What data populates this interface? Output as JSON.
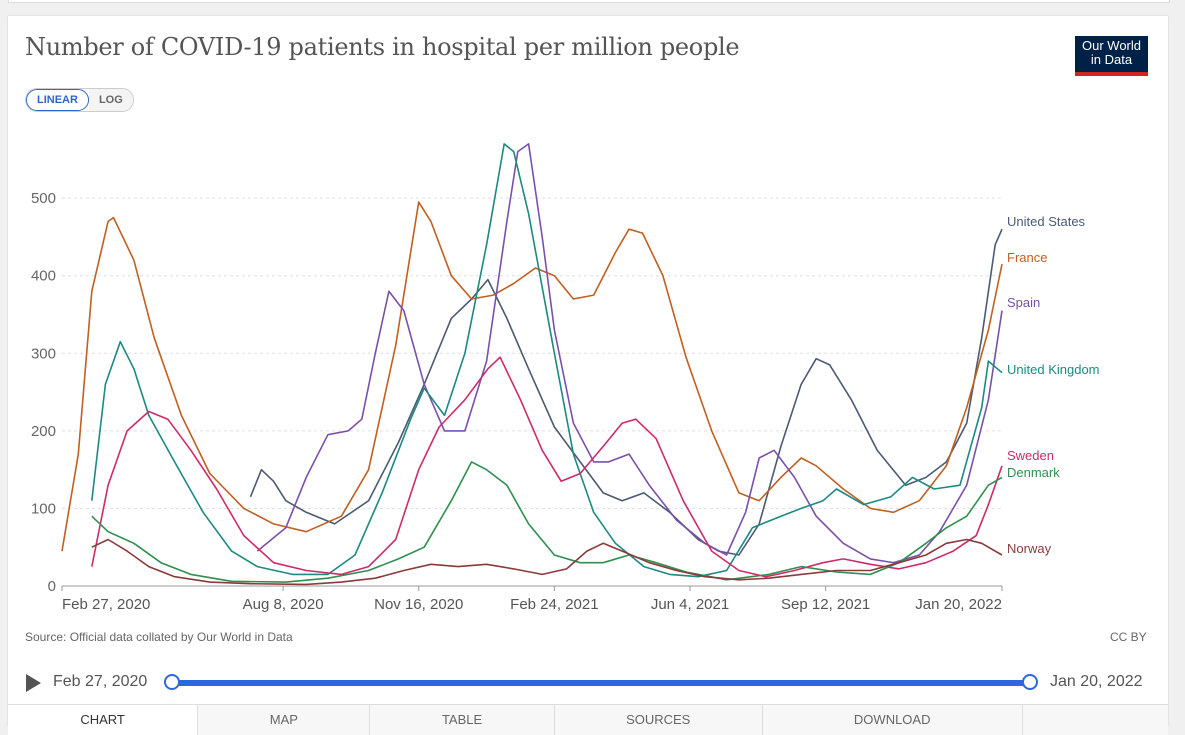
{
  "chart_data": {
    "type": "line",
    "title": "Number of COVID-19 patients in hospital per million people",
    "ylim": [
      0,
      575
    ],
    "yticks": [
      0,
      100,
      200,
      300,
      400,
      500
    ],
    "x_range": [
      "Feb 27, 2020",
      "Jan 20, 2022"
    ],
    "xticks": [
      "Feb 27, 2020",
      "Aug 8, 2020",
      "Nov 16, 2020",
      "Feb 24, 2021",
      "Jun 4, 2021",
      "Sep 12, 2021",
      "Jan 20, 2022"
    ],
    "grid": "horizontal dashed",
    "legend": "inline-right",
    "series": [
      {
        "name": "United States",
        "color": "#4c5a73",
        "points": [
          [
            "2020-07-15",
            115
          ],
          [
            "2020-07-23",
            150
          ],
          [
            "2020-08-01",
            135
          ],
          [
            "2020-08-10",
            110
          ],
          [
            "2020-08-25",
            95
          ],
          [
            "2020-09-15",
            80
          ],
          [
            "2020-10-10",
            110
          ],
          [
            "2020-11-01",
            185
          ],
          [
            "2020-11-20",
            260
          ],
          [
            "2020-12-10",
            345
          ],
          [
            "2020-12-25",
            370
          ],
          [
            "2021-01-06",
            395
          ],
          [
            "2021-01-20",
            345
          ],
          [
            "2021-02-05",
            280
          ],
          [
            "2021-02-24",
            205
          ],
          [
            "2021-03-15",
            160
          ],
          [
            "2021-04-01",
            120
          ],
          [
            "2021-04-15",
            110
          ],
          [
            "2021-05-01",
            120
          ],
          [
            "2021-05-20",
            95
          ],
          [
            "2021-06-10",
            60
          ],
          [
            "2021-06-25",
            45
          ],
          [
            "2021-07-10",
            40
          ],
          [
            "2021-07-25",
            80
          ],
          [
            "2021-08-10",
            180
          ],
          [
            "2021-08-25",
            260
          ],
          [
            "2021-09-05",
            293
          ],
          [
            "2021-09-15",
            285
          ],
          [
            "2021-10-01",
            240
          ],
          [
            "2021-10-20",
            175
          ],
          [
            "2021-11-10",
            130
          ],
          [
            "2021-11-25",
            140
          ],
          [
            "2021-12-10",
            160
          ],
          [
            "2021-12-25",
            210
          ],
          [
            "2022-01-05",
            320
          ],
          [
            "2022-01-15",
            440
          ],
          [
            "2022-01-20",
            460
          ]
        ]
      },
      {
        "name": "France",
        "color": "#c15f20",
        "points": [
          [
            "2020-02-27",
            45
          ],
          [
            "2020-03-10",
            170
          ],
          [
            "2020-03-20",
            380
          ],
          [
            "2020-04-01",
            470
          ],
          [
            "2020-04-05",
            475
          ],
          [
            "2020-04-20",
            420
          ],
          [
            "2020-05-05",
            320
          ],
          [
            "2020-05-25",
            220
          ],
          [
            "2020-06-15",
            145
          ],
          [
            "2020-07-10",
            100
          ],
          [
            "2020-08-01",
            80
          ],
          [
            "2020-08-25",
            70
          ],
          [
            "2020-09-20",
            90
          ],
          [
            "2020-10-10",
            150
          ],
          [
            "2020-10-30",
            310
          ],
          [
            "2020-11-16",
            495
          ],
          [
            "2020-11-25",
            470
          ],
          [
            "2020-12-10",
            400
          ],
          [
            "2020-12-25",
            370
          ],
          [
            "2021-01-10",
            375
          ],
          [
            "2021-01-25",
            390
          ],
          [
            "2021-02-10",
            410
          ],
          [
            "2021-02-24",
            400
          ],
          [
            "2021-03-10",
            370
          ],
          [
            "2021-03-25",
            375
          ],
          [
            "2021-04-10",
            430
          ],
          [
            "2021-04-20",
            460
          ],
          [
            "2021-04-30",
            455
          ],
          [
            "2021-05-15",
            400
          ],
          [
            "2021-06-01",
            295
          ],
          [
            "2021-06-20",
            200
          ],
          [
            "2021-07-10",
            120
          ],
          [
            "2021-07-25",
            110
          ],
          [
            "2021-08-10",
            140
          ],
          [
            "2021-08-25",
            165
          ],
          [
            "2021-09-05",
            155
          ],
          [
            "2021-09-25",
            125
          ],
          [
            "2021-10-15",
            100
          ],
          [
            "2021-11-01",
            95
          ],
          [
            "2021-11-20",
            110
          ],
          [
            "2021-12-10",
            155
          ],
          [
            "2021-12-25",
            230
          ],
          [
            "2022-01-10",
            330
          ],
          [
            "2022-01-20",
            415
          ]
        ]
      },
      {
        "name": "Spain",
        "color": "#7a50ab",
        "points": [
          [
            "2020-07-20",
            45
          ],
          [
            "2020-08-10",
            75
          ],
          [
            "2020-08-25",
            140
          ],
          [
            "2020-09-10",
            195
          ],
          [
            "2020-09-25",
            200
          ],
          [
            "2020-10-05",
            215
          ],
          [
            "2020-10-15",
            300
          ],
          [
            "2020-10-25",
            380
          ],
          [
            "2020-11-05",
            355
          ],
          [
            "2020-11-20",
            260
          ],
          [
            "2020-12-05",
            200
          ],
          [
            "2020-12-20",
            200
          ],
          [
            "2021-01-05",
            290
          ],
          [
            "2021-01-20",
            470
          ],
          [
            "2021-01-28",
            560
          ],
          [
            "2021-02-05",
            570
          ],
          [
            "2021-02-15",
            450
          ],
          [
            "2021-02-24",
            330
          ],
          [
            "2021-03-10",
            210
          ],
          [
            "2021-03-25",
            160
          ],
          [
            "2021-04-05",
            160
          ],
          [
            "2021-04-20",
            170
          ],
          [
            "2021-05-05",
            130
          ],
          [
            "2021-05-25",
            85
          ],
          [
            "2021-06-15",
            55
          ],
          [
            "2021-07-01",
            40
          ],
          [
            "2021-07-15",
            95
          ],
          [
            "2021-07-25",
            165
          ],
          [
            "2021-08-05",
            175
          ],
          [
            "2021-08-20",
            140
          ],
          [
            "2021-09-05",
            90
          ],
          [
            "2021-09-25",
            55
          ],
          [
            "2021-10-15",
            35
          ],
          [
            "2021-11-01",
            30
          ],
          [
            "2021-11-20",
            40
          ],
          [
            "2021-12-05",
            70
          ],
          [
            "2021-12-25",
            130
          ],
          [
            "2022-01-10",
            240
          ],
          [
            "2022-01-20",
            355
          ]
        ]
      },
      {
        "name": "United Kingdom",
        "color": "#1b8a82",
        "points": [
          [
            "2020-03-20",
            110
          ],
          [
            "2020-03-30",
            260
          ],
          [
            "2020-04-10",
            315
          ],
          [
            "2020-04-20",
            280
          ],
          [
            "2020-05-01",
            220
          ],
          [
            "2020-05-20",
            160
          ],
          [
            "2020-06-10",
            95
          ],
          [
            "2020-07-01",
            45
          ],
          [
            "2020-07-20",
            25
          ],
          [
            "2020-08-15",
            15
          ],
          [
            "2020-09-10",
            15
          ],
          [
            "2020-09-30",
            40
          ],
          [
            "2020-10-20",
            120
          ],
          [
            "2020-11-10",
            215
          ],
          [
            "2020-11-20",
            255
          ],
          [
            "2020-12-05",
            220
          ],
          [
            "2020-12-20",
            300
          ],
          [
            "2021-01-05",
            440
          ],
          [
            "2021-01-18",
            570
          ],
          [
            "2021-01-25",
            560
          ],
          [
            "2021-02-05",
            480
          ],
          [
            "2021-02-24",
            300
          ],
          [
            "2021-03-10",
            170
          ],
          [
            "2021-03-25",
            95
          ],
          [
            "2021-04-10",
            55
          ],
          [
            "2021-05-01",
            25
          ],
          [
            "2021-05-20",
            15
          ],
          [
            "2021-06-10",
            12
          ],
          [
            "2021-07-01",
            20
          ],
          [
            "2021-07-20",
            75
          ],
          [
            "2021-08-10",
            90
          ],
          [
            "2021-08-25",
            100
          ],
          [
            "2021-09-10",
            110
          ],
          [
            "2021-09-20",
            125
          ],
          [
            "2021-10-10",
            105
          ],
          [
            "2021-10-30",
            115
          ],
          [
            "2021-11-15",
            140
          ],
          [
            "2021-12-01",
            125
          ],
          [
            "2021-12-20",
            130
          ],
          [
            "2022-01-05",
            230
          ],
          [
            "2022-01-10",
            290
          ],
          [
            "2022-01-20",
            275
          ]
        ]
      },
      {
        "name": "Sweden",
        "color": "#cf2a6a",
        "points": [
          [
            "2020-03-20",
            25
          ],
          [
            "2020-04-01",
            130
          ],
          [
            "2020-04-15",
            200
          ],
          [
            "2020-05-01",
            225
          ],
          [
            "2020-05-15",
            215
          ],
          [
            "2020-06-01",
            175
          ],
          [
            "2020-06-20",
            125
          ],
          [
            "2020-07-10",
            65
          ],
          [
            "2020-08-01",
            30
          ],
          [
            "2020-08-25",
            20
          ],
          [
            "2020-09-20",
            15
          ],
          [
            "2020-10-10",
            25
          ],
          [
            "2020-10-30",
            60
          ],
          [
            "2020-11-16",
            150
          ],
          [
            "2020-12-01",
            205
          ],
          [
            "2020-12-20",
            240
          ],
          [
            "2021-01-06",
            280
          ],
          [
            "2021-01-15",
            295
          ],
          [
            "2021-01-30",
            240
          ],
          [
            "2021-02-15",
            175
          ],
          [
            "2021-03-01",
            135
          ],
          [
            "2021-03-15",
            145
          ],
          [
            "2021-04-01",
            180
          ],
          [
            "2021-04-15",
            210
          ],
          [
            "2021-04-25",
            215
          ],
          [
            "2021-05-10",
            190
          ],
          [
            "2021-05-30",
            110
          ],
          [
            "2021-06-20",
            45
          ],
          [
            "2021-07-10",
            20
          ],
          [
            "2021-07-30",
            12
          ],
          [
            "2021-08-20",
            20
          ],
          [
            "2021-09-10",
            30
          ],
          [
            "2021-09-25",
            35
          ],
          [
            "2021-10-15",
            28
          ],
          [
            "2021-11-05",
            22
          ],
          [
            "2021-11-25",
            30
          ],
          [
            "2021-12-15",
            45
          ],
          [
            "2022-01-01",
            65
          ],
          [
            "2022-01-10",
            105
          ],
          [
            "2022-01-20",
            155
          ]
        ]
      },
      {
        "name": "Denmark",
        "color": "#2e8f4e",
        "points": [
          [
            "2020-03-20",
            90
          ],
          [
            "2020-04-01",
            70
          ],
          [
            "2020-04-20",
            55
          ],
          [
            "2020-05-10",
            30
          ],
          [
            "2020-06-01",
            15
          ],
          [
            "2020-07-01",
            6
          ],
          [
            "2020-08-10",
            5
          ],
          [
            "2020-09-10",
            10
          ],
          [
            "2020-10-10",
            20
          ],
          [
            "2020-11-01",
            35
          ],
          [
            "2020-11-20",
            50
          ],
          [
            "2020-12-10",
            110
          ],
          [
            "2020-12-25",
            160
          ],
          [
            "2021-01-05",
            150
          ],
          [
            "2021-01-20",
            130
          ],
          [
            "2021-02-05",
            80
          ],
          [
            "2021-02-24",
            40
          ],
          [
            "2021-03-15",
            30
          ],
          [
            "2021-04-01",
            30
          ],
          [
            "2021-04-20",
            40
          ],
          [
            "2021-05-10",
            30
          ],
          [
            "2021-06-01",
            18
          ],
          [
            "2021-07-01",
            8
          ],
          [
            "2021-08-01",
            15
          ],
          [
            "2021-08-25",
            25
          ],
          [
            "2021-09-20",
            18
          ],
          [
            "2021-10-15",
            15
          ],
          [
            "2021-11-05",
            30
          ],
          [
            "2021-11-25",
            55
          ],
          [
            "2021-12-10",
            75
          ],
          [
            "2021-12-25",
            90
          ],
          [
            "2022-01-10",
            130
          ],
          [
            "2022-01-20",
            140
          ]
        ]
      },
      {
        "name": "Norway",
        "color": "#8b3a3a",
        "points": [
          [
            "2020-03-20",
            50
          ],
          [
            "2020-04-01",
            60
          ],
          [
            "2020-04-15",
            45
          ],
          [
            "2020-05-01",
            25
          ],
          [
            "2020-05-20",
            12
          ],
          [
            "2020-06-15",
            5
          ],
          [
            "2020-07-15",
            3
          ],
          [
            "2020-08-25",
            2
          ],
          [
            "2020-09-20",
            5
          ],
          [
            "2020-10-15",
            10
          ],
          [
            "2020-11-05",
            20
          ],
          [
            "2020-11-25",
            28
          ],
          [
            "2020-12-15",
            25
          ],
          [
            "2021-01-05",
            28
          ],
          [
            "2021-01-25",
            22
          ],
          [
            "2021-02-15",
            15
          ],
          [
            "2021-03-05",
            22
          ],
          [
            "2021-03-20",
            45
          ],
          [
            "2021-04-01",
            55
          ],
          [
            "2021-04-15",
            45
          ],
          [
            "2021-05-05",
            30
          ],
          [
            "2021-05-25",
            20
          ],
          [
            "2021-06-15",
            12
          ],
          [
            "2021-07-10",
            8
          ],
          [
            "2021-08-01",
            10
          ],
          [
            "2021-08-25",
            15
          ],
          [
            "2021-09-20",
            20
          ],
          [
            "2021-10-15",
            20
          ],
          [
            "2021-11-05",
            30
          ],
          [
            "2021-11-25",
            40
          ],
          [
            "2021-12-10",
            55
          ],
          [
            "2021-12-25",
            60
          ],
          [
            "2022-01-05",
            55
          ],
          [
            "2022-01-20",
            40
          ]
        ]
      }
    ]
  },
  "ui": {
    "scale_linear": "LINEAR",
    "scale_log": "LOG",
    "logo_line1": "Our World",
    "logo_line2": "in Data",
    "source": "Source: Official data collated by Our World in Data",
    "license": "CC BY",
    "timeline_start": "Feb 27, 2020",
    "timeline_end": "Jan 20, 2022",
    "tabs": [
      "CHART",
      "MAP",
      "TABLE",
      "SOURCES",
      "DOWNLOAD",
      ""
    ]
  }
}
